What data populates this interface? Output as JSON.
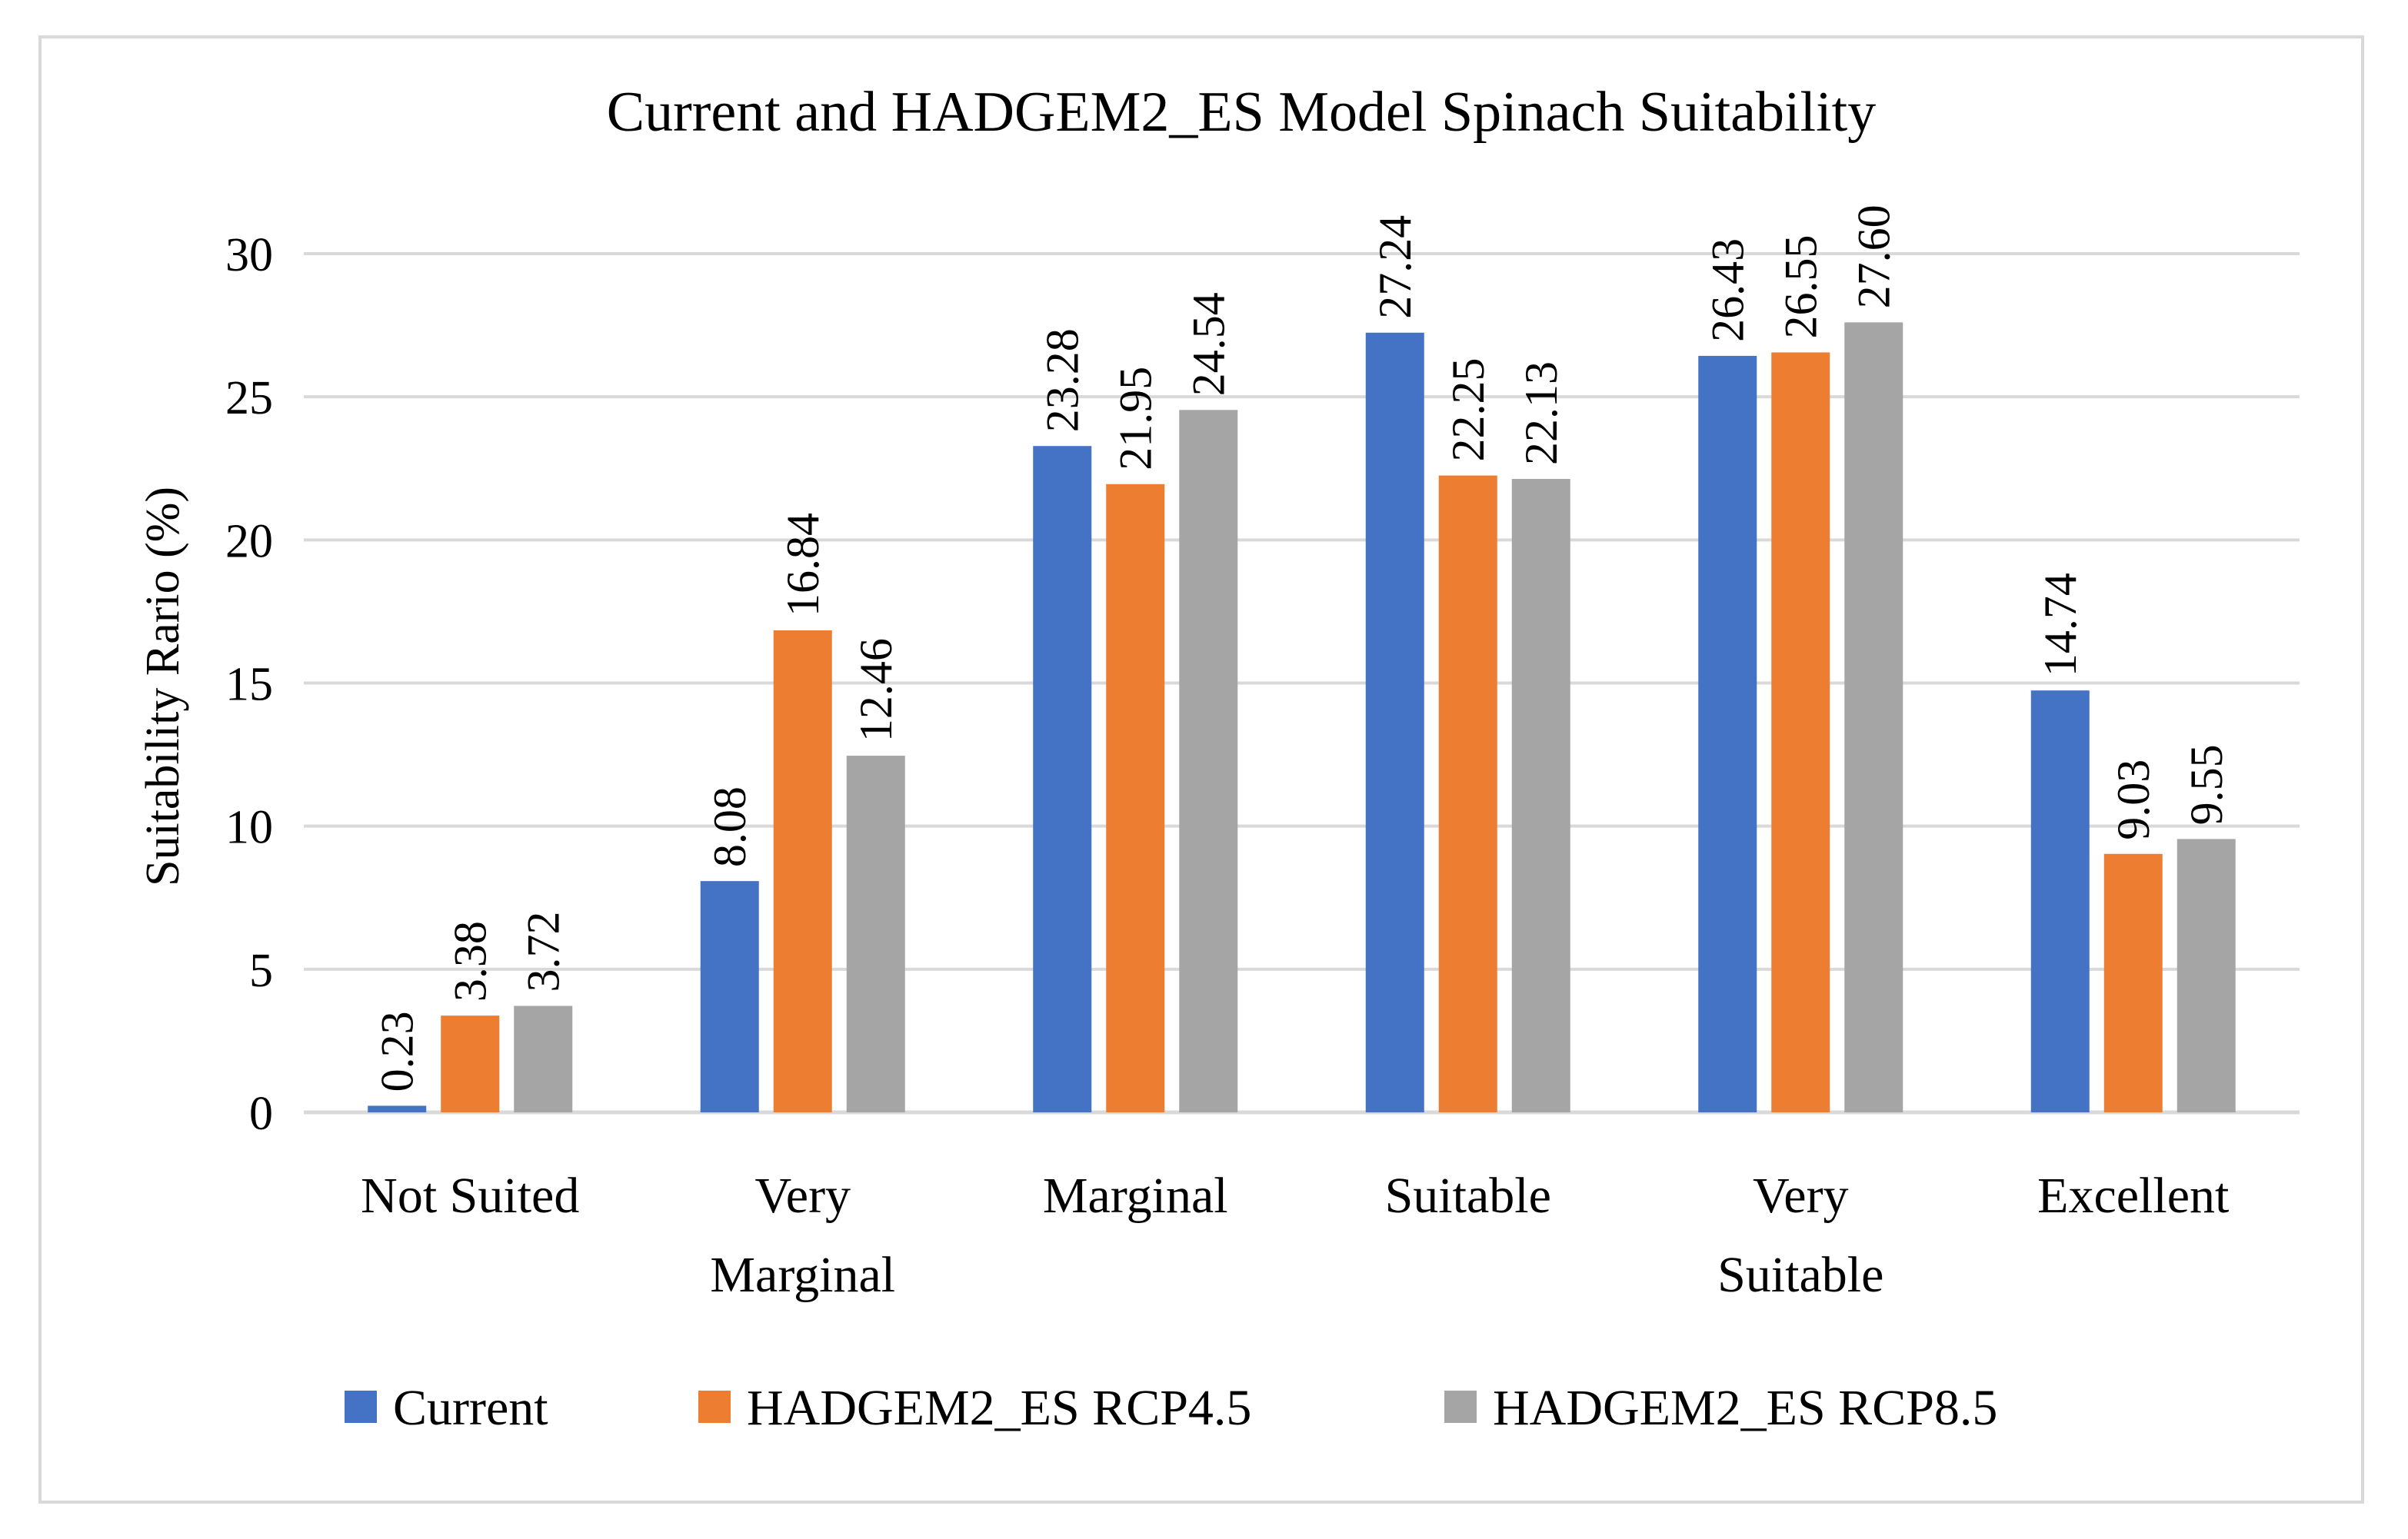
{
  "chart_data": {
    "type": "bar",
    "title": "Current and HADGEM2_ES Model Spinach Suitability",
    "xlabel": "",
    "ylabel": "Suitability Rario (%)",
    "ylim": [
      0,
      30
    ],
    "yticks": [
      0,
      5,
      10,
      15,
      20,
      25,
      30
    ],
    "grid": true,
    "legend_position": "bottom",
    "categories": [
      [
        "Not Suited"
      ],
      [
        "Very",
        "Marginal"
      ],
      [
        "Marginal"
      ],
      [
        "Suitable"
      ],
      [
        "Very",
        "Suitable"
      ],
      [
        "Excellent"
      ]
    ],
    "series": [
      {
        "name": "Current",
        "color": "#4472c4",
        "values": [
          0.23,
          8.08,
          23.28,
          27.24,
          26.43,
          14.74
        ],
        "labels": [
          "0.23",
          "8.08",
          "23.28",
          "27.24",
          "26.43",
          "14.74"
        ]
      },
      {
        "name": "HADGEM2_ES RCP4.5",
        "color": "#ed7d31",
        "values": [
          3.38,
          16.84,
          21.95,
          22.25,
          26.55,
          9.03
        ],
        "labels": [
          "3.38",
          "16.84",
          "21.95",
          "22.25",
          "26.55",
          "9.03"
        ]
      },
      {
        "name": "HADGEM2_ES RCP8.5",
        "color": "#a5a5a5",
        "values": [
          3.72,
          12.46,
          24.54,
          22.13,
          27.6,
          9.55
        ],
        "labels": [
          "3.72",
          "12.46",
          "24.54",
          "22.13",
          "27.60",
          "9.55"
        ]
      }
    ]
  }
}
